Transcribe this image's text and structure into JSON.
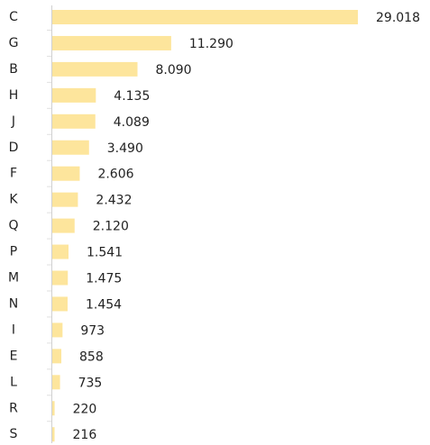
{
  "chart_data": {
    "type": "barh",
    "color": "#fde59c",
    "categories": [
      "C",
      "G",
      "B",
      "H",
      "J",
      "D",
      "F",
      "K",
      "Q",
      "P",
      "M",
      "N",
      "I",
      "E",
      "L",
      "R",
      "S"
    ],
    "values": [
      29018,
      11290,
      8090,
      4135,
      4089,
      3490,
      2606,
      2432,
      2120,
      1541,
      1475,
      1454,
      973,
      858,
      735,
      220,
      216
    ],
    "value_labels": [
      "29.018",
      "11.290",
      "8.090",
      "4.135",
      "4.089",
      "3.490",
      "2.606",
      "2.432",
      "2.120",
      "1.541",
      "1.475",
      "1.454",
      "973",
      "858",
      "735",
      "220",
      "216"
    ]
  }
}
